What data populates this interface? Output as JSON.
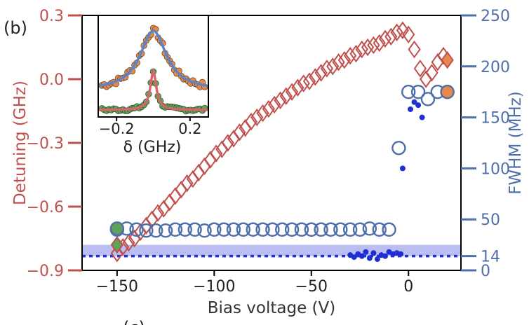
{
  "panel_label": "(b)",
  "cutoff_label": "(c)",
  "colors": {
    "detuning": "#c0504d",
    "fwhm": "#4f6fa8",
    "band": "#a9aeef",
    "dots": "#1f2fd0",
    "inset_orange": "#e8894a",
    "inset_green": "#5fa25a"
  },
  "chart_data": [
    {
      "type": "scatter",
      "xlabel": "Bias voltage (V)",
      "ylabel_left": "Detuning (GHz)",
      "ylabel_right": "FWHM (MHz)",
      "xlim": [
        -168,
        27
      ],
      "ylim_left": [
        -0.9,
        0.3
      ],
      "ylim_right": [
        0,
        250
      ],
      "x_ticks": [
        -150,
        -100,
        -50,
        0
      ],
      "x_tick_labels": [
        "−150",
        "−100",
        "−50",
        "0"
      ],
      "y_left_ticks": [
        0.3,
        0.0,
        -0.3,
        -0.6,
        -0.9
      ],
      "y_left_tick_labels": [
        "0.3",
        "0.0",
        "−0.3",
        "−0.6",
        "−0.9"
      ],
      "y_right_ticks": [
        250,
        200,
        150,
        100,
        50,
        14,
        0
      ],
      "y_right_tick_labels": [
        "250",
        "200",
        "150",
        "100",
        "50",
        "14",
        "0"
      ],
      "highlight_band_fwhm": [
        14,
        25
      ],
      "reference_line_fwhm": 14,
      "series": [
        {
          "marker": "diamond-open",
          "axis": "left",
          "x": [
            -150,
            -147,
            -144,
            -141,
            -138,
            -135,
            -132,
            -129,
            -126,
            -123,
            -120,
            -117,
            -114,
            -111,
            -108,
            -105,
            -102,
            -99,
            -96,
            -93,
            -90,
            -87,
            -84,
            -81,
            -78,
            -75,
            -72,
            -69,
            -66,
            -63,
            -60,
            -57,
            -54,
            -51,
            -48,
            -45,
            -42,
            -39,
            -36,
            -33,
            -30,
            -27,
            -24,
            -21,
            -18,
            -15,
            -12,
            -9,
            -6,
            -3,
            0,
            3,
            6,
            9,
            12,
            15,
            18
          ],
          "values": [
            -0.82,
            -0.79,
            -0.77,
            -0.75,
            -0.72,
            -0.69,
            -0.66,
            -0.63,
            -0.61,
            -0.58,
            -0.55,
            -0.52,
            -0.49,
            -0.47,
            -0.44,
            -0.41,
            -0.38,
            -0.35,
            -0.33,
            -0.3,
            -0.28,
            -0.25,
            -0.23,
            -0.2,
            -0.18,
            -0.16,
            -0.14,
            -0.12,
            -0.1,
            -0.08,
            -0.06,
            -0.04,
            -0.02,
            -0.01,
            0.01,
            0.03,
            0.05,
            0.06,
            0.08,
            0.09,
            0.11,
            0.12,
            0.14,
            0.15,
            0.16,
            0.17,
            0.19,
            0.2,
            0.22,
            0.23,
            0.21,
            0.14,
            0.05,
            0.0,
            0.03,
            0.08,
            0.11
          ]
        },
        {
          "marker": "diamond-filled",
          "axis": "left",
          "x": [
            -150,
            20
          ],
          "values": [
            -0.78,
            0.09
          ]
        },
        {
          "marker": "circle-open",
          "axis": "right",
          "x": [
            -150,
            -145,
            -140,
            -135,
            -130,
            -125,
            -120,
            -115,
            -110,
            -105,
            -100,
            -95,
            -90,
            -85,
            -80,
            -75,
            -70,
            -65,
            -60,
            -55,
            -50,
            -45,
            -40,
            -35,
            -30,
            -25,
            -20,
            -15,
            -10,
            -5,
            0,
            5,
            10,
            15,
            20
          ],
          "values": [
            40,
            41,
            40,
            39,
            39,
            39,
            40,
            40,
            40,
            39,
            40,
            40,
            40,
            40,
            40,
            40,
            40,
            40,
            40,
            40,
            40,
            40,
            40,
            40,
            40,
            40,
            41,
            40,
            40,
            40,
            40,
            40,
            40,
            40,
            40
          ],
          "values_right": [
            40,
            41,
            40,
            39,
            39,
            39,
            40,
            40,
            40,
            39,
            40,
            40,
            40,
            40,
            40,
            40,
            40,
            40,
            40,
            40,
            40,
            40,
            40,
            40,
            40,
            40,
            41,
            40,
            40,
            40,
            40,
            40,
            40,
            40,
            40
          ]
        },
        {
          "marker": "circle-open-late",
          "axis": "right",
          "x": [
            -5,
            0,
            5,
            10,
            15,
            20
          ],
          "values": [
            120,
            175,
            175,
            168,
            175,
            175
          ]
        },
        {
          "marker": "circle-filled",
          "axis": "right",
          "x": [
            -150,
            20
          ],
          "values": [
            41,
            175
          ]
        },
        {
          "marker": "dot",
          "axis": "right",
          "x": [
            -30,
            -28,
            -26,
            -24,
            -22,
            -20,
            -18,
            -16,
            -14,
            -12,
            -10,
            -8,
            -6,
            -4,
            -3,
            1,
            3,
            5,
            7
          ],
          "values": [
            15,
            13,
            16,
            14,
            18,
            12,
            17,
            11,
            15,
            14,
            18,
            16,
            17,
            16,
            100,
            158,
            165,
            162,
            150
          ]
        }
      ]
    },
    {
      "type": "scatter",
      "xlabel": "δ (GHz)",
      "xlim": [
        -0.3,
        0.3
      ],
      "x_ticks": [
        -0.2,
        0.2
      ],
      "x_tick_labels": [
        "−0.2",
        "0.2"
      ],
      "series": [
        {
          "marker": "orange-points",
          "peak_x": 0.0,
          "width_fwhm": 0.175
        },
        {
          "marker": "green-points",
          "peak_x": 0.0,
          "width_fwhm": 0.04
        }
      ]
    }
  ]
}
